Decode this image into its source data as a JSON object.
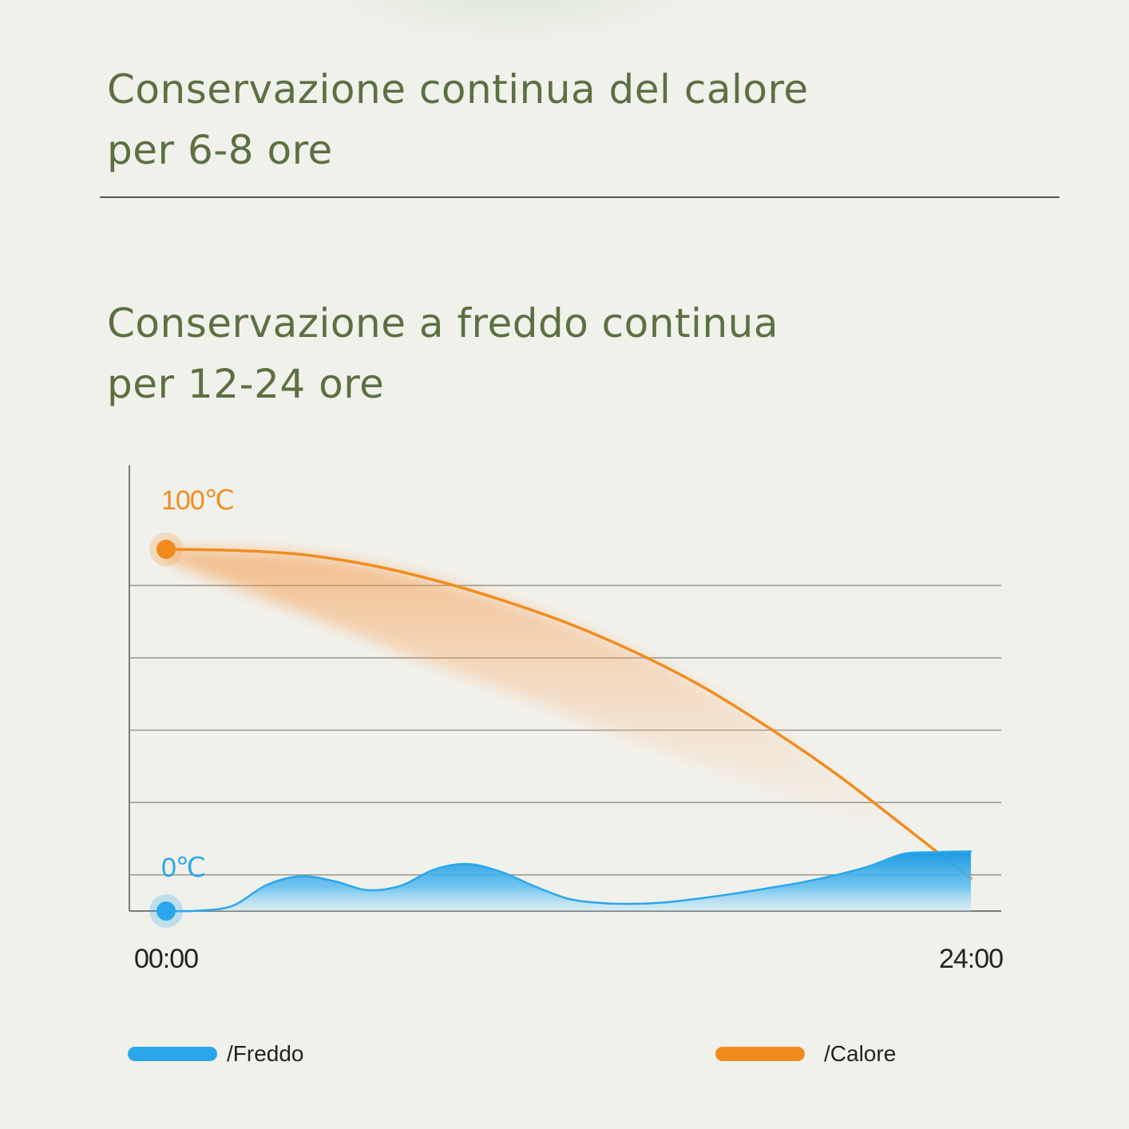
{
  "headings": [
    {
      "line1": "Conservazione continua del calore",
      "line2": "per 6-8 ore"
    },
    {
      "line1": "Conservazione a freddo continua",
      "line2": "per 12-24 ore"
    }
  ],
  "colors": {
    "heading_text": "#5c7042",
    "calore": "#f08c1e",
    "freddo": "#2aa7ea",
    "grid": "#9a9a96",
    "axis": "#7c7c78"
  },
  "chart_data": {
    "type": "area",
    "x_unit": "hours",
    "xlim": [
      0,
      24
    ],
    "ylim": [
      0,
      100
    ],
    "y_gridlines": [
      10,
      30,
      50,
      70,
      90
    ],
    "grid": true,
    "x_tick_labels": [
      {
        "x": 0,
        "label": "00:00"
      },
      {
        "x": 24,
        "label": "24:00"
      }
    ],
    "series": [
      {
        "name": "/Calore",
        "color": "#f08c1e",
        "start_label": "100℃",
        "x": [
          0,
          2,
          4,
          6,
          8,
          10,
          12,
          14,
          16,
          18,
          20,
          22,
          24
        ],
        "y": [
          100,
          99.7,
          98.6,
          95.8,
          91.5,
          86,
          79.5,
          71.5,
          62,
          50.5,
          37.8,
          23.5,
          9
        ]
      },
      {
        "name": "/Freddo",
        "color": "#2aa7ea",
        "start_label": "0℃",
        "x": [
          0,
          1,
          2,
          3,
          4,
          5,
          6,
          7,
          8,
          9,
          10,
          11,
          12,
          13,
          14,
          15,
          16,
          17,
          18,
          19,
          20,
          21,
          22,
          23,
          24
        ],
        "y": [
          0,
          0.1,
          1.5,
          7.2,
          9.6,
          8.3,
          5.8,
          7.0,
          11.5,
          13.0,
          10.8,
          6.8,
          3.4,
          2.2,
          2.0,
          2.5,
          3.6,
          4.9,
          6.4,
          8.0,
          10.0,
          12.5,
          15.8,
          16.3,
          16.5
        ]
      }
    ],
    "legend": [
      {
        "label": "/Freddo",
        "color": "#2aa7ea"
      },
      {
        "label": "/Calore",
        "color": "#f08c1e"
      }
    ],
    "legend_placement": "bottom"
  }
}
